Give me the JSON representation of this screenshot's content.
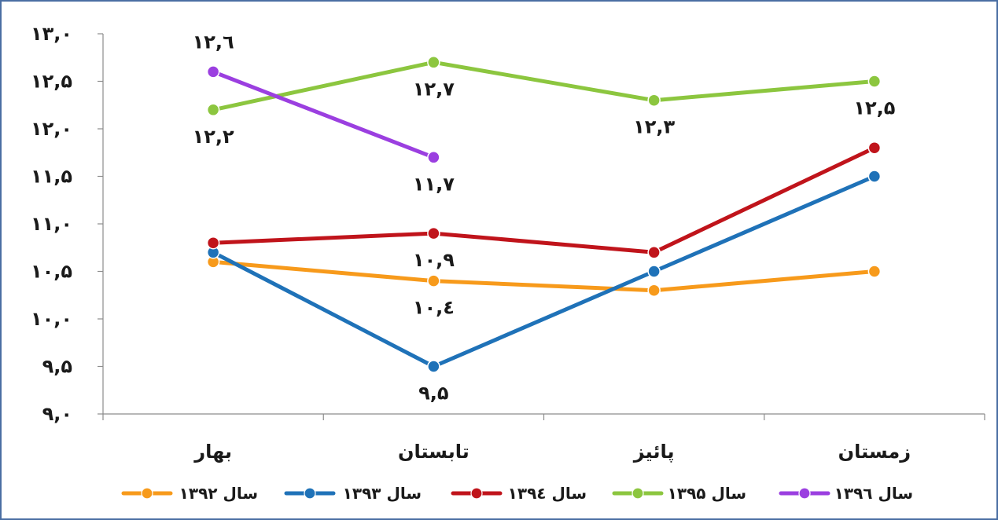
{
  "chart_data": {
    "type": "line",
    "categories": [
      "بهار",
      "تابستان",
      "پائیز",
      "زمستان"
    ],
    "ylim": [
      9.0,
      13.0
    ],
    "yticks": [
      "۹,۰",
      "۹,۵",
      "۱۰,۰",
      "۱۰,۵",
      "۱۱,۰",
      "۱۱,۵",
      "۱۲,۰",
      "۱۲,۵",
      "۱۳,۰"
    ],
    "ytick_values": [
      9.0,
      9.5,
      10.0,
      10.5,
      11.0,
      11.5,
      12.0,
      12.5,
      13.0
    ],
    "grid": false,
    "legend_position": "bottom",
    "series": [
      {
        "name": "سال ۱۳۹۲",
        "color": "#f79a1b",
        "values": [
          10.6,
          10.4,
          10.3,
          10.5
        ],
        "labels": [
          null,
          "۱۰,٤",
          null,
          null
        ]
      },
      {
        "name": "سال ۱۳۹۳",
        "color": "#1f72b8",
        "values": [
          10.7,
          9.5,
          10.5,
          11.5
        ],
        "labels": [
          null,
          "۹,۵",
          null,
          null
        ]
      },
      {
        "name": "سال ۱۳۹٤",
        "color": "#c0141b",
        "values": [
          10.8,
          10.9,
          10.7,
          11.8
        ],
        "labels": [
          null,
          "۱۰,۹",
          null,
          null
        ]
      },
      {
        "name": "سال ۱۳۹۵",
        "color": "#8cc63f",
        "values": [
          12.2,
          12.7,
          12.3,
          12.5
        ],
        "labels": [
          "۱۲,۲",
          "۱۲,۷",
          "۱۲,۳",
          "۱۲,۵"
        ]
      },
      {
        "name": "سال ۱۳۹٦",
        "color": "#9b3fe0",
        "values": [
          12.6,
          11.7,
          null,
          null
        ],
        "labels": [
          "۱۲,٦",
          "۱۱,۷",
          null,
          null
        ]
      }
    ]
  }
}
